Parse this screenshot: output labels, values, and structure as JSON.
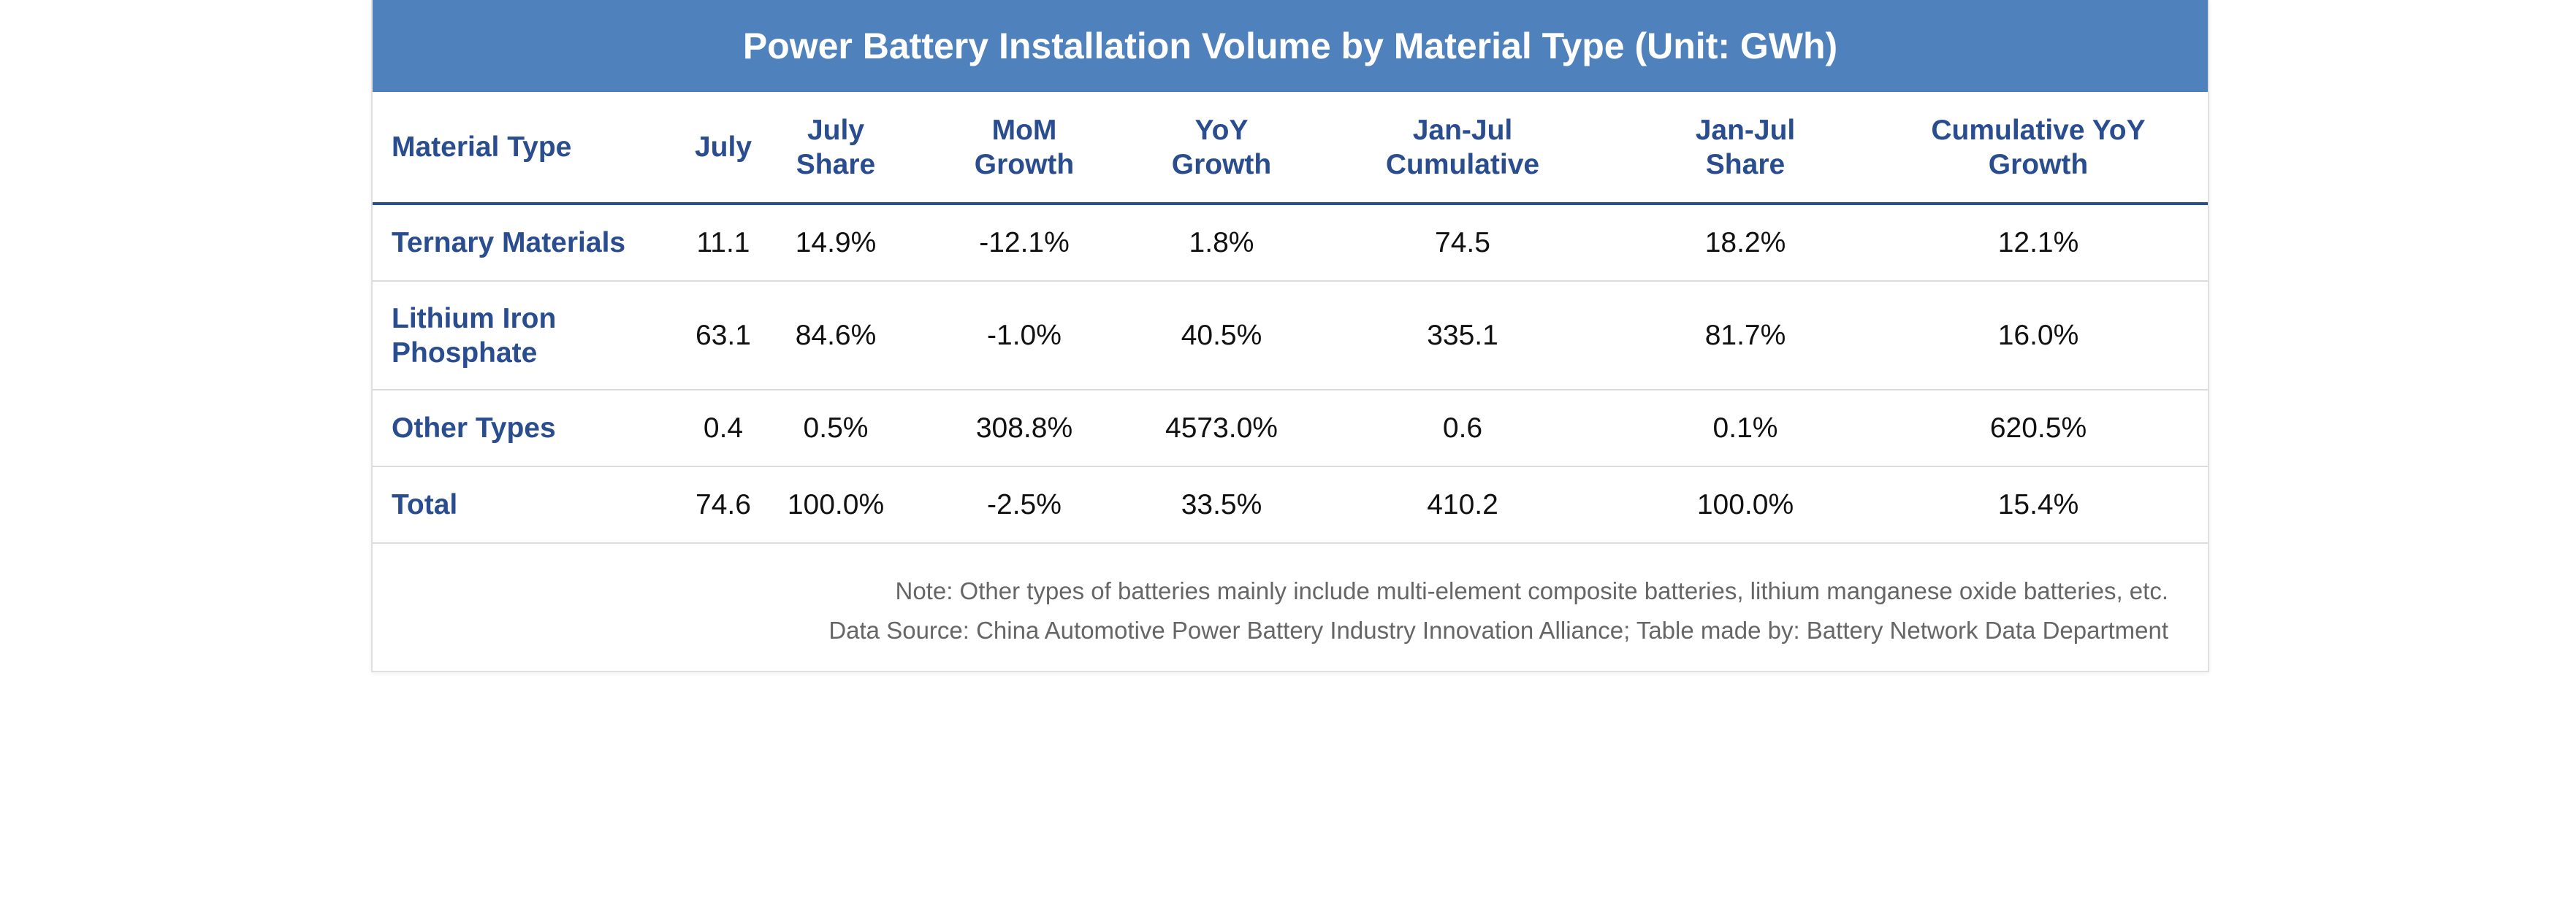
{
  "title": "Power Battery Installation Volume by Material Type (Unit: GWh)",
  "columns": [
    {
      "line1": "Material Type",
      "line2": ""
    },
    {
      "line1": "July",
      "line2": ""
    },
    {
      "line1": "July",
      "line2": "Share"
    },
    {
      "line1": "MoM",
      "line2": "Growth"
    },
    {
      "line1": "YoY",
      "line2": "Growth"
    },
    {
      "line1": "Jan-Jul",
      "line2": "Cumulative"
    },
    {
      "line1": "Jan-Jul",
      "line2": "Share"
    },
    {
      "line1": "Cumulative YoY",
      "line2": "Growth"
    }
  ],
  "rows": [
    {
      "label": "Ternary Materials",
      "cells": [
        "11.1",
        "14.9%",
        "-12.1%",
        "1.8%",
        "74.5",
        "18.2%",
        "12.1%"
      ]
    },
    {
      "label": "Lithium Iron Phosphate",
      "cells": [
        "63.1",
        "84.6%",
        "-1.0%",
        "40.5%",
        "335.1",
        "81.7%",
        "16.0%"
      ]
    },
    {
      "label": "Other Types",
      "cells": [
        "0.4",
        "0.5%",
        "308.8%",
        "4573.0%",
        "0.6",
        "0.1%",
        "620.5%"
      ]
    },
    {
      "label": "Total",
      "cells": [
        "74.6",
        "100.0%",
        "-2.5%",
        "33.5%",
        "410.2",
        "100.0%",
        "15.4%"
      ]
    }
  ],
  "notes": {
    "note": "Note: Other types of batteries mainly include multi-element composite batteries, lithium manganese oxide batteries, etc.",
    "source": "Data Source: China Automotive Power Battery Industry Innovation Alliance; Table made by: Battery Network Data Department"
  },
  "colors": {
    "header_bg": "#4f81bd",
    "header_text": "#2a4d8f",
    "accent_rule": "#2a4d8f"
  },
  "chart_data": {
    "type": "table",
    "title": "Power Battery Installation Volume by Material Type (Unit: GWh)",
    "columns": [
      "Material Type",
      "July",
      "July Share",
      "MoM Growth",
      "YoY Growth",
      "Jan-Jul Cumulative",
      "Jan-Jul Share",
      "Cumulative YoY Growth"
    ],
    "rows": [
      [
        "Ternary Materials",
        "11.1",
        "14.9%",
        "-12.1%",
        "1.8%",
        "74.5",
        "18.2%",
        "12.1%"
      ],
      [
        "Lithium Iron Phosphate",
        "63.1",
        "84.6%",
        "-1.0%",
        "40.5%",
        "335.1",
        "81.7%",
        "16.0%"
      ],
      [
        "Other Types",
        "0.4",
        "0.5%",
        "308.8%",
        "4573.0%",
        "0.6",
        "0.1%",
        "620.5%"
      ],
      [
        "Total",
        "74.6",
        "100.0%",
        "-2.5%",
        "33.5%",
        "410.2",
        "100.0%",
        "15.4%"
      ]
    ]
  }
}
